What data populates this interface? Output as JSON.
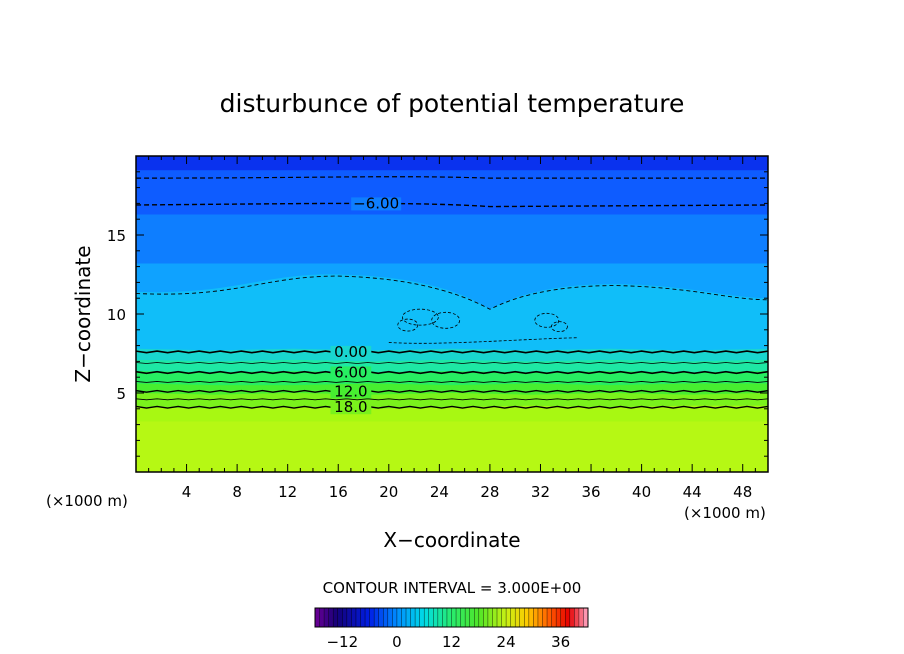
{
  "chart_data": {
    "type": "heatmap",
    "title": "disturbunce of potential temperature",
    "xlabel": "X−coordinate",
    "ylabel": "Z−coordinate",
    "x_unit_left": "(×1000 m)",
    "x_unit_right": "(×1000 m)",
    "xlim": [
      0,
      50
    ],
    "ylim": [
      0,
      20
    ],
    "x_ticks": [
      4,
      8,
      12,
      16,
      20,
      24,
      28,
      32,
      36,
      40,
      44,
      48
    ],
    "x_tick_labels": [
      "4",
      "8",
      "12",
      "16",
      "20",
      "24",
      "28",
      "32",
      "36",
      "40",
      "44",
      "48"
    ],
    "y_ticks": [
      5,
      10,
      15
    ],
    "y_tick_labels": [
      "5",
      "10",
      "15"
    ],
    "contour_labels": [
      {
        "text": "−6.00",
        "x": 19,
        "y": 17.0
      },
      {
        "text": "0.00",
        "x": 17,
        "y": 7.6
      },
      {
        "text": "6.00",
        "x": 17,
        "y": 6.3
      },
      {
        "text": "12.0",
        "x": 17,
        "y": 5.1
      },
      {
        "text": "18.0",
        "x": 17,
        "y": 4.1
      }
    ],
    "contour_interval_text": "CONTOUR INTERVAL = 3.000E+00",
    "colorbar": {
      "range": [
        -18,
        42
      ],
      "tick_values": [
        -12,
        0,
        12,
        24,
        36
      ],
      "tick_labels": [
        "−12",
        "0",
        "12",
        "24",
        "36"
      ]
    },
    "colors": {
      "level_m12": "#0a32ee",
      "level_m9": "#0e5cff",
      "level_m6": "#0e7eff",
      "level_m3": "#0fa2ff",
      "level_0": "#10bef9",
      "level_3": "#19d6cf",
      "level_6": "#1ee8a4",
      "level_9": "#27ee62",
      "level_12": "#47ee30",
      "level_15": "#7af21c",
      "level_18": "#a8f812",
      "level_21": "#c0f815"
    }
  }
}
